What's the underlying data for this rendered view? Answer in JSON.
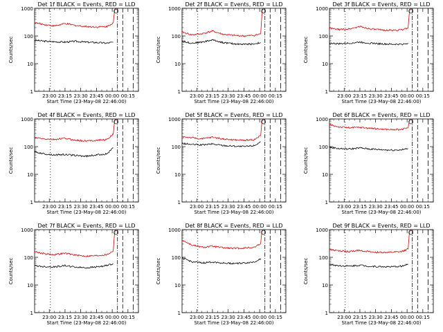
{
  "chart_data": [
    {
      "type": "line",
      "title": "Det 1f BLACK = Events, RED = LLD",
      "xlabel": "Start Time (23-May-08 22:46:00)",
      "ylabel": "Counts/sec",
      "xlim": [
        "22:46",
        "00:25"
      ],
      "ylim": [
        1,
        1000
      ],
      "yscale": "log",
      "ytick_labels": [
        "1",
        "10",
        "100",
        "1000"
      ],
      "xtick_labels": [
        "23:00",
        "23:15",
        "23:30",
        "23:45",
        "00:00",
        "00:15"
      ],
      "series": [
        {
          "color": "#000000",
          "x": [
            "22:46",
            "22:55",
            "23:05",
            "23:15",
            "23:25",
            "23:35",
            "23:45",
            "23:55",
            "00:01"
          ],
          "values": [
            70,
            65,
            62,
            60,
            64,
            60,
            58,
            55,
            60
          ]
        },
        {
          "color": "#e00000",
          "x": [
            "22:46",
            "22:55",
            "23:05",
            "23:15",
            "23:25",
            "23:35",
            "23:45",
            "23:55",
            "00:01",
            "00:02",
            "00:03"
          ],
          "values": [
            300,
            260,
            230,
            280,
            240,
            220,
            210,
            220,
            300,
            700,
            1100
          ]
        }
      ]
    },
    {
      "type": "line",
      "title": "Det 2f BLACK = Events, RED = LLD",
      "xlabel": "Start Time (23-May-08 22:46:00)",
      "ylabel": "Counts/sec",
      "xlim": [
        "22:46",
        "00:25"
      ],
      "ylim": [
        1,
        1000
      ],
      "yscale": "log",
      "ytick_labels": [
        "1",
        "10",
        "100",
        "1000"
      ],
      "xtick_labels": [
        "23:00",
        "23:15",
        "23:30",
        "23:45",
        "00:00",
        "00:15"
      ],
      "series": [
        {
          "color": "#000000",
          "x": [
            "22:46",
            "22:55",
            "23:05",
            "23:15",
            "23:25",
            "23:35",
            "23:45",
            "23:55",
            "00:01"
          ],
          "values": [
            65,
            55,
            60,
            72,
            58,
            52,
            50,
            52,
            58
          ]
        },
        {
          "color": "#e00000",
          "x": [
            "22:46",
            "22:55",
            "23:05",
            "23:15",
            "23:25",
            "23:35",
            "23:45",
            "23:55",
            "00:01",
            "00:02",
            "00:03"
          ],
          "values": [
            140,
            110,
            120,
            150,
            115,
            105,
            100,
            105,
            120,
            500,
            1100
          ]
        }
      ]
    },
    {
      "type": "line",
      "title": "Det 3f BLACK = Events, RED = LLD",
      "xlabel": "Start Time (23-May-08 22:46:00)",
      "ylabel": "Counts/sec",
      "xlim": [
        "22:46",
        "00:25"
      ],
      "ylim": [
        1,
        1000
      ],
      "yscale": "log",
      "ytick_labels": [
        "1",
        "10",
        "100",
        "1000"
      ],
      "xtick_labels": [
        "23:00",
        "23:15",
        "23:30",
        "23:45",
        "00:00",
        "00:15"
      ],
      "series": [
        {
          "color": "#000000",
          "x": [
            "22:46",
            "22:55",
            "23:05",
            "23:15",
            "23:25",
            "23:35",
            "23:45",
            "23:55",
            "00:01"
          ],
          "values": [
            55,
            52,
            55,
            60,
            55,
            52,
            50,
            50,
            55
          ]
        },
        {
          "color": "#e00000",
          "x": [
            "22:46",
            "22:55",
            "23:05",
            "23:15",
            "23:25",
            "23:35",
            "23:45",
            "23:55",
            "00:01",
            "00:02",
            "00:03"
          ],
          "values": [
            190,
            170,
            180,
            220,
            180,
            165,
            160,
            165,
            200,
            600,
            1100
          ]
        }
      ]
    },
    {
      "type": "line",
      "title": "Det 4f BLACK = Events, RED = LLD",
      "xlabel": "Start Time (23-May-08 22:46:00)",
      "ylabel": "Counts/sec",
      "xlim": [
        "22:46",
        "00:25"
      ],
      "ylim": [
        1,
        1000
      ],
      "yscale": "log",
      "ytick_labels": [
        "1",
        "10",
        "100",
        "1000"
      ],
      "xtick_labels": [
        "23:00",
        "23:15",
        "23:30",
        "23:45",
        "00:00",
        "00:15"
      ],
      "series": [
        {
          "color": "#000000",
          "x": [
            "22:46",
            "22:55",
            "23:05",
            "23:15",
            "23:25",
            "23:35",
            "23:45",
            "23:55",
            "00:01"
          ],
          "values": [
            65,
            55,
            50,
            52,
            48,
            45,
            50,
            55,
            90
          ]
        },
        {
          "color": "#e00000",
          "x": [
            "22:46",
            "22:55",
            "23:05",
            "23:15",
            "23:25",
            "23:35",
            "23:45",
            "23:55",
            "00:01",
            "00:02",
            "00:03"
          ],
          "values": [
            210,
            190,
            180,
            200,
            170,
            160,
            170,
            180,
            280,
            700,
            1100
          ]
        }
      ]
    },
    {
      "type": "line",
      "title": "Det 5f BLACK = Events, RED = LLD",
      "xlabel": "Start Time (23-May-08 22:46:00)",
      "ylabel": "Counts/sec",
      "xlim": [
        "22:46",
        "00:25"
      ],
      "ylim": [
        1,
        1000
      ],
      "yscale": "log",
      "ytick_labels": [
        "1",
        "10",
        "100",
        "1000"
      ],
      "xtick_labels": [
        "23:00",
        "23:15",
        "23:30",
        "23:45",
        "00:00",
        "00:15"
      ],
      "series": [
        {
          "color": "#000000",
          "x": [
            "22:46",
            "22:55",
            "23:05",
            "23:15",
            "23:25",
            "23:35",
            "23:45",
            "23:55",
            "00:01"
          ],
          "values": [
            130,
            120,
            115,
            125,
            110,
            105,
            100,
            110,
            150
          ]
        },
        {
          "color": "#e00000",
          "x": [
            "22:46",
            "22:55",
            "23:05",
            "23:15",
            "23:25",
            "23:35",
            "23:45",
            "23:55",
            "00:01",
            "00:02",
            "00:03"
          ],
          "values": [
            230,
            210,
            190,
            220,
            190,
            175,
            170,
            180,
            250,
            700,
            1100
          ]
        }
      ]
    },
    {
      "type": "line",
      "title": "Det 6f BLACK = Events, RED = LLD",
      "xlabel": "Start Time (23-May-08 22:46:00)",
      "ylabel": "Counts/sec",
      "xlim": [
        "22:46",
        "00:25"
      ],
      "ylim": [
        1,
        1000
      ],
      "yscale": "log",
      "ytick_labels": [
        "1",
        "10",
        "100",
        "1000"
      ],
      "xtick_labels": [
        "23:00",
        "23:15",
        "23:30",
        "23:45",
        "00:00",
        "00:15"
      ],
      "series": [
        {
          "color": "#000000",
          "x": [
            "22:46",
            "22:55",
            "23:05",
            "23:15",
            "23:25",
            "23:35",
            "23:45",
            "23:55",
            "00:01"
          ],
          "values": [
            95,
            85,
            82,
            90,
            82,
            78,
            75,
            77,
            85
          ]
        },
        {
          "color": "#e00000",
          "x": [
            "22:46",
            "22:55",
            "23:05",
            "23:15",
            "23:25",
            "23:35",
            "23:45",
            "23:55",
            "00:01",
            "00:02",
            "00:03"
          ],
          "values": [
            620,
            520,
            480,
            500,
            460,
            430,
            410,
            420,
            480,
            800,
            1100
          ]
        }
      ]
    },
    {
      "type": "line",
      "title": "Det 7f BLACK = Events, RED = LLD",
      "xlabel": "Start Time (23-May-08 22:46:00)",
      "ylabel": "Counts/sec",
      "xlim": [
        "22:46",
        "00:25"
      ],
      "ylim": [
        1,
        1000
      ],
      "yscale": "log",
      "ytick_labels": [
        "1",
        "10",
        "100",
        "1000"
      ],
      "xtick_labels": [
        "23:00",
        "23:15",
        "23:30",
        "23:45",
        "00:00",
        "00:15"
      ],
      "series": [
        {
          "color": "#000000",
          "x": [
            "22:46",
            "22:55",
            "23:05",
            "23:15",
            "23:25",
            "23:35",
            "23:45",
            "23:55",
            "00:01"
          ],
          "values": [
            50,
            46,
            45,
            50,
            44,
            42,
            45,
            50,
            60
          ]
        },
        {
          "color": "#e00000",
          "x": [
            "22:46",
            "22:55",
            "23:05",
            "23:15",
            "23:25",
            "23:35",
            "23:45",
            "23:55",
            "00:01",
            "00:02",
            "00:03"
          ],
          "values": [
            160,
            135,
            125,
            140,
            120,
            110,
            115,
            125,
            170,
            600,
            1100
          ]
        }
      ]
    },
    {
      "type": "line",
      "title": "Det 8f BLACK = Events, RED = LLD",
      "xlabel": "Start Time (23-May-08 22:46:00)",
      "ylabel": "Counts/sec",
      "xlim": [
        "22:46",
        "00:25"
      ],
      "ylim": [
        1,
        1000
      ],
      "yscale": "log",
      "ytick_labels": [
        "1",
        "10",
        "100",
        "1000"
      ],
      "xtick_labels": [
        "23:00",
        "23:15",
        "23:30",
        "23:45",
        "00:00",
        "00:15"
      ],
      "series": [
        {
          "color": "#000000",
          "x": [
            "22:46",
            "22:55",
            "23:05",
            "23:15",
            "23:25",
            "23:35",
            "23:45",
            "23:55",
            "00:01"
          ],
          "values": [
            95,
            70,
            62,
            68,
            62,
            60,
            62,
            68,
            90
          ]
        },
        {
          "color": "#e00000",
          "x": [
            "22:46",
            "22:55",
            "23:05",
            "23:15",
            "23:25",
            "23:35",
            "23:45",
            "23:55",
            "00:01",
            "00:02",
            "00:03"
          ],
          "values": [
            420,
            280,
            230,
            250,
            220,
            210,
            215,
            230,
            320,
            800,
            1100
          ]
        }
      ]
    },
    {
      "type": "line",
      "title": "Det 9f BLACK = Events, RED = LLD",
      "xlabel": "Start Time (23-May-08 22:46:00)",
      "ylabel": "Counts/sec",
      "xlim": [
        "22:46",
        "00:25"
      ],
      "ylim": [
        1,
        1000
      ],
      "yscale": "log",
      "ytick_labels": [
        "1",
        "10",
        "100",
        "1000"
      ],
      "xtick_labels": [
        "23:00",
        "23:15",
        "23:30",
        "23:45",
        "00:00",
        "00:15"
      ],
      "series": [
        {
          "color": "#000000",
          "x": [
            "22:46",
            "22:55",
            "23:05",
            "23:15",
            "23:25",
            "23:35",
            "23:45",
            "23:55",
            "00:01"
          ],
          "values": [
            55,
            50,
            48,
            52,
            47,
            46,
            45,
            48,
            55
          ]
        },
        {
          "color": "#e00000",
          "x": [
            "22:46",
            "22:55",
            "23:05",
            "23:15",
            "23:25",
            "23:35",
            "23:45",
            "23:55",
            "00:01",
            "00:02",
            "00:03"
          ],
          "values": [
            190,
            170,
            160,
            180,
            155,
            150,
            150,
            160,
            200,
            650,
            1100
          ]
        }
      ]
    }
  ]
}
